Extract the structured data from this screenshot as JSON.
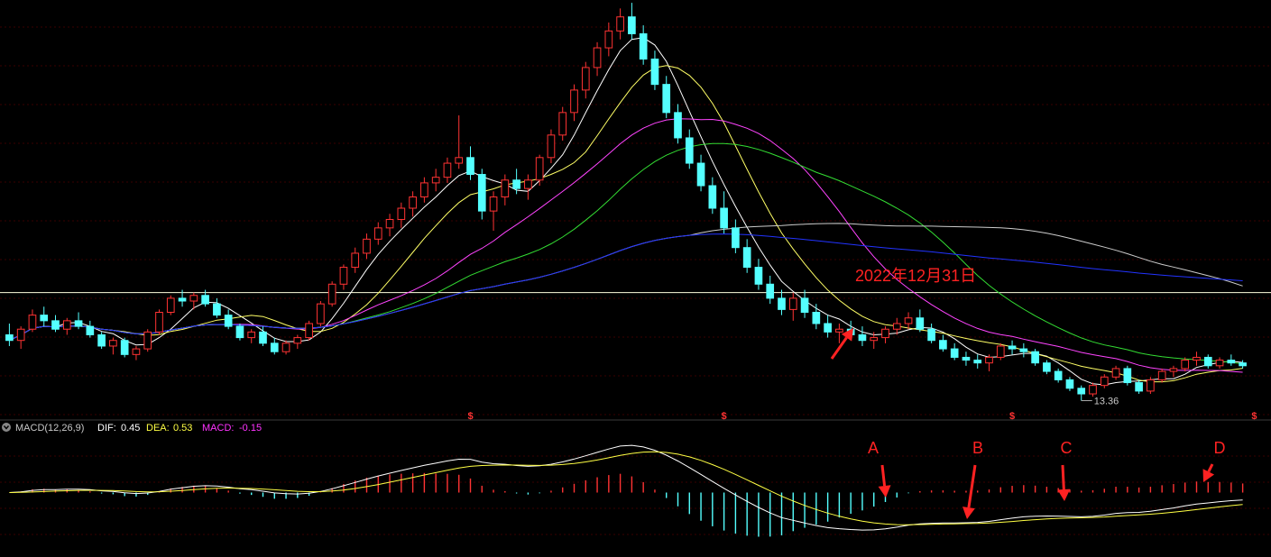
{
  "chart_data": {
    "type": "candlestick",
    "price_panel": {
      "candles": [
        [
          15.7,
          16.1,
          15.3,
          15.5
        ],
        [
          15.5,
          16.0,
          15.2,
          15.9
        ],
        [
          15.9,
          16.6,
          15.8,
          16.4
        ],
        [
          16.4,
          16.7,
          16.0,
          16.2
        ],
        [
          16.2,
          16.4,
          15.8,
          15.9
        ],
        [
          15.9,
          16.3,
          15.7,
          16.2
        ],
        [
          16.2,
          16.5,
          15.9,
          16.0
        ],
        [
          16.0,
          16.2,
          15.6,
          15.7
        ],
        [
          15.7,
          15.8,
          15.2,
          15.3
        ],
        [
          15.3,
          15.6,
          15.0,
          15.5
        ],
        [
          15.5,
          15.6,
          14.9,
          15.0
        ],
        [
          15.0,
          15.3,
          14.8,
          15.2
        ],
        [
          15.2,
          15.9,
          15.1,
          15.8
        ],
        [
          15.8,
          16.6,
          15.7,
          16.5
        ],
        [
          16.5,
          17.1,
          16.4,
          17.0
        ],
        [
          17.0,
          17.3,
          16.7,
          16.9
        ],
        [
          16.9,
          17.2,
          16.6,
          17.1
        ],
        [
          17.1,
          17.3,
          16.7,
          16.8
        ],
        [
          16.8,
          17.0,
          16.3,
          16.4
        ],
        [
          16.4,
          16.6,
          15.9,
          16.0
        ],
        [
          16.0,
          16.1,
          15.5,
          15.6
        ],
        [
          15.6,
          15.9,
          15.4,
          15.8
        ],
        [
          15.8,
          16.0,
          15.3,
          15.4
        ],
        [
          15.4,
          15.6,
          15.0,
          15.1
        ],
        [
          15.1,
          15.5,
          15.0,
          15.4
        ],
        [
          15.4,
          15.7,
          15.2,
          15.6
        ],
        [
          15.6,
          16.2,
          15.5,
          16.1
        ],
        [
          16.1,
          16.9,
          16.0,
          16.8
        ],
        [
          16.8,
          17.6,
          16.7,
          17.5
        ],
        [
          17.5,
          18.2,
          17.3,
          18.1
        ],
        [
          18.1,
          18.8,
          17.9,
          18.6
        ],
        [
          18.6,
          19.3,
          18.4,
          19.1
        ],
        [
          19.1,
          19.7,
          18.9,
          19.5
        ],
        [
          19.5,
          20.0,
          19.2,
          19.8
        ],
        [
          19.8,
          20.4,
          19.5,
          20.2
        ],
        [
          20.2,
          20.8,
          19.9,
          20.6
        ],
        [
          20.6,
          21.3,
          20.4,
          21.1
        ],
        [
          21.1,
          21.6,
          20.8,
          21.3
        ],
        [
          21.3,
          22.0,
          21.1,
          21.8
        ],
        [
          21.8,
          23.5,
          21.6,
          22.0
        ],
        [
          22.0,
          22.4,
          21.2,
          21.4
        ],
        [
          21.4,
          21.6,
          19.8,
          20.1
        ],
        [
          20.1,
          20.8,
          19.4,
          20.6
        ],
        [
          20.6,
          21.4,
          20.3,
          21.2
        ],
        [
          21.2,
          21.6,
          20.7,
          20.9
        ],
        [
          20.9,
          21.4,
          20.5,
          21.2
        ],
        [
          21.2,
          22.1,
          21.0,
          22.0
        ],
        [
          22.0,
          23.0,
          21.8,
          22.8
        ],
        [
          22.8,
          23.8,
          22.6,
          23.6
        ],
        [
          23.6,
          24.6,
          23.3,
          24.4
        ],
        [
          24.4,
          25.4,
          24.1,
          25.2
        ],
        [
          25.2,
          26.1,
          24.9,
          25.9
        ],
        [
          25.9,
          26.8,
          25.6,
          26.5
        ],
        [
          26.5,
          27.3,
          26.2,
          27.0
        ],
        [
          27.0,
          27.5,
          26.2,
          26.4
        ],
        [
          26.4,
          26.7,
          25.3,
          25.5
        ],
        [
          25.5,
          25.8,
          24.4,
          24.6
        ],
        [
          24.6,
          24.9,
          23.4,
          23.6
        ],
        [
          23.6,
          23.9,
          22.5,
          22.7
        ],
        [
          22.7,
          23.0,
          21.6,
          21.8
        ],
        [
          21.8,
          22.1,
          20.8,
          21.0
        ],
        [
          21.0,
          21.3,
          20.0,
          20.2
        ],
        [
          20.2,
          20.8,
          19.3,
          19.5
        ],
        [
          19.5,
          19.8,
          18.6,
          18.8
        ],
        [
          18.8,
          19.1,
          17.9,
          18.1
        ],
        [
          18.1,
          18.4,
          17.3,
          17.5
        ],
        [
          17.5,
          17.8,
          16.8,
          17.0
        ],
        [
          17.0,
          17.3,
          16.4,
          16.6
        ],
        [
          16.6,
          17.2,
          16.2,
          17.0
        ],
        [
          17.0,
          17.3,
          16.3,
          16.5
        ],
        [
          16.5,
          16.8,
          15.9,
          16.1
        ],
        [
          16.1,
          16.4,
          15.6,
          15.8
        ],
        [
          15.8,
          16.1,
          15.4,
          15.9
        ],
        [
          15.9,
          16.2,
          15.5,
          15.7
        ],
        [
          15.7,
          16.0,
          15.3,
          15.5
        ],
        [
          15.5,
          15.8,
          15.2,
          15.6
        ],
        [
          15.6,
          16.0,
          15.4,
          15.9
        ],
        [
          15.9,
          16.3,
          15.7,
          16.1
        ],
        [
          16.1,
          16.5,
          15.9,
          16.3
        ],
        [
          16.3,
          16.6,
          15.8,
          15.9
        ],
        [
          15.9,
          16.1,
          15.4,
          15.5
        ],
        [
          15.5,
          15.7,
          15.1,
          15.2
        ],
        [
          15.2,
          15.4,
          14.8,
          14.9
        ],
        [
          14.9,
          15.1,
          14.6,
          14.8
        ],
        [
          14.8,
          15.0,
          14.5,
          14.7
        ],
        [
          14.7,
          15.0,
          14.4,
          14.9
        ],
        [
          14.9,
          15.4,
          14.8,
          15.3
        ],
        [
          15.3,
          15.5,
          15.0,
          15.2
        ],
        [
          15.2,
          15.4,
          14.9,
          15.1
        ],
        [
          15.1,
          15.2,
          14.6,
          14.7
        ],
        [
          14.7,
          14.8,
          14.3,
          14.4
        ],
        [
          14.4,
          14.5,
          14.0,
          14.1
        ],
        [
          14.1,
          14.2,
          13.7,
          13.8
        ],
        [
          13.8,
          13.9,
          13.36,
          13.6
        ],
        [
          13.6,
          14.0,
          13.5,
          13.9
        ],
        [
          13.9,
          14.3,
          13.8,
          14.2
        ],
        [
          14.2,
          14.6,
          14.1,
          14.5
        ],
        [
          14.5,
          14.6,
          13.9,
          14.0
        ],
        [
          14.0,
          14.1,
          13.6,
          13.7
        ],
        [
          13.7,
          14.2,
          13.6,
          14.1
        ],
        [
          14.1,
          14.5,
          14.0,
          14.4
        ],
        [
          14.4,
          14.6,
          14.2,
          14.5
        ],
        [
          14.5,
          14.9,
          14.4,
          14.8
        ],
        [
          14.8,
          15.1,
          14.6,
          14.9
        ],
        [
          14.9,
          15.0,
          14.5,
          14.6
        ],
        [
          14.6,
          14.9,
          14.5,
          14.8
        ],
        [
          14.8,
          15.0,
          14.6,
          14.7
        ],
        [
          14.7,
          14.8,
          14.5,
          14.6
        ]
      ],
      "ma_lines": [
        {
          "name": "MA5",
          "color": "#ffffff"
        },
        {
          "name": "MA10",
          "color": "#ffff66"
        },
        {
          "name": "MA20",
          "color": "#ff44ff"
        },
        {
          "name": "MA30",
          "color": "#33dd33"
        },
        {
          "name": "MA60",
          "color": "#cccccc"
        },
        {
          "name": "MA120",
          "color": "#2233ff"
        }
      ],
      "horizontal_line": 17.2,
      "low_label": "13.36",
      "marker_glyph": "$",
      "marker_indices": [
        40,
        62,
        87,
        108
      ],
      "annotation_date": "2022年12月31日",
      "ylim": [
        12.8,
        27.6
      ]
    },
    "macd_panel": {
      "dif": 0.45,
      "dea": 0.53,
      "macd": -0.15,
      "ylim": [
        -2.6,
        2.6
      ],
      "point_labels": [
        "A",
        "B",
        "C",
        "D"
      ],
      "point_indices": [
        78,
        86,
        95,
        106
      ]
    }
  },
  "macd_header": {
    "label": "MACD(12,26,9)",
    "dif_label": "DIF:",
    "dif_value": "0.45",
    "dea_label": "DEA:",
    "dea_value": "0.53",
    "macd_label": "MACD:",
    "macd_value": "-0.15"
  },
  "colors": {
    "up": "#ff3333",
    "down": "#54ffff",
    "annotation": "#ff2222",
    "dif": "#ffffff",
    "dea": "#ffff44",
    "macd_label": "#ff33ff",
    "hline": "#ffffdd"
  }
}
